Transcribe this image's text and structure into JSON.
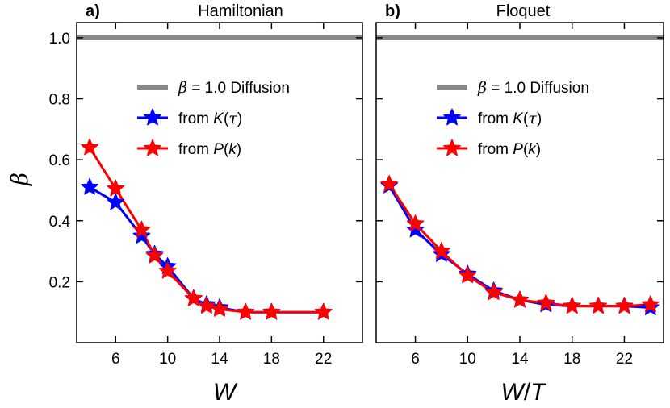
{
  "chart_data": [
    {
      "type": "line",
      "panel_letter": "a)",
      "title": "Hamiltonian",
      "xlabel": "W",
      "ylabel": "β",
      "xlim": [
        3,
        25
      ],
      "ylim": [
        0.0,
        1.05
      ],
      "xticks": [
        6,
        10,
        14,
        18,
        22
      ],
      "yticks": [
        0.2,
        0.4,
        0.6,
        0.8,
        1.0
      ],
      "ytick_labels": [
        "0.2",
        "0.4",
        "0.6",
        "0.8",
        "1.0"
      ],
      "reference_line": {
        "y": 1.0,
        "color": "#888888",
        "label": "β = 1.0 Diffusion"
      },
      "series": [
        {
          "name": "from K(τ)",
          "color": "#0000ff",
          "marker": "star",
          "x": [
            4,
            6,
            8,
            9,
            10,
            12,
            13,
            14,
            16,
            18,
            22
          ],
          "y": [
            0.51,
            0.46,
            0.35,
            0.29,
            0.25,
            0.145,
            0.125,
            0.115,
            0.1,
            0.1,
            0.1
          ]
        },
        {
          "name": "from P(k)",
          "color": "#ff0000",
          "marker": "star",
          "x": [
            4,
            6,
            8,
            9,
            10,
            12,
            13,
            14,
            16,
            18,
            22
          ],
          "y": [
            0.64,
            0.505,
            0.37,
            0.285,
            0.235,
            0.145,
            0.12,
            0.11,
            0.1,
            0.1,
            0.1
          ]
        }
      ],
      "legend_position": "upper-right"
    },
    {
      "type": "line",
      "panel_letter": "b)",
      "title": "Floquet",
      "xlabel": "W/T",
      "xlim": [
        3,
        25
      ],
      "ylim": [
        0.0,
        1.05
      ],
      "xticks": [
        6,
        10,
        14,
        18,
        22
      ],
      "yticks": [
        0.2,
        0.4,
        0.6,
        0.8,
        1.0
      ],
      "reference_line": {
        "y": 1.0,
        "color": "#888888",
        "label": "β = 1.0 Diffusion"
      },
      "series": [
        {
          "name": "from K(τ)",
          "color": "#0000ff",
          "marker": "star",
          "x": [
            4,
            6,
            8,
            10,
            12,
            14,
            16,
            18,
            20,
            22,
            24
          ],
          "y": [
            0.515,
            0.37,
            0.29,
            0.225,
            0.17,
            0.14,
            0.125,
            0.12,
            0.12,
            0.12,
            0.115
          ]
        },
        {
          "name": "from P(k)",
          "color": "#ff0000",
          "marker": "star",
          "x": [
            4,
            6,
            8,
            10,
            12,
            14,
            16,
            18,
            20,
            22,
            24
          ],
          "y": [
            0.52,
            0.39,
            0.3,
            0.22,
            0.165,
            0.14,
            0.13,
            0.12,
            0.12,
            0.12,
            0.125
          ]
        }
      ],
      "legend_position": "upper-right"
    }
  ],
  "legend": {
    "ref_prefix": "β",
    "ref_rest": " = 1.0 Diffusion",
    "k_prefix": "from ",
    "k_italic": "K",
    "k_paren_open": "(",
    "k_arg": "τ",
    "k_paren_close": ")",
    "p_prefix": "from ",
    "p_italic": "P",
    "p_paren_open": "(",
    "p_arg": "k",
    "p_paren_close": ")"
  },
  "axes": {
    "ylabel": "β",
    "xlabel_a": "W",
    "xlabel_b_1": "W",
    "xlabel_b_2": "/",
    "xlabel_b_3": "T"
  }
}
